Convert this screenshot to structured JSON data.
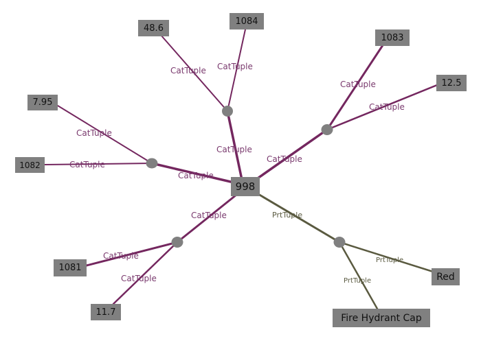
{
  "colors": {
    "cat_edge": "#74275f",
    "prt_edge": "#5a5a40",
    "cat_label": "#7a3a6e",
    "prt_label": "#5a5a40",
    "node_fill": "#808080",
    "node_text": "#111111",
    "hub_fill": "#808080"
  },
  "graph": {
    "center": "998",
    "nodes": {
      "center": "998",
      "n1084": "1084",
      "n48_6": "48.6",
      "n1083": "1083",
      "n12_5": "12.5",
      "n7_95": "7.95",
      "n1082": "1082",
      "n1081": "1081",
      "n11_7": "11.7",
      "red": "Red",
      "fire_hydrant_cap": "Fire Hydrant Cap"
    },
    "edge_labels": {
      "cat": "CatTuple",
      "prt": "PrtTuple"
    }
  }
}
